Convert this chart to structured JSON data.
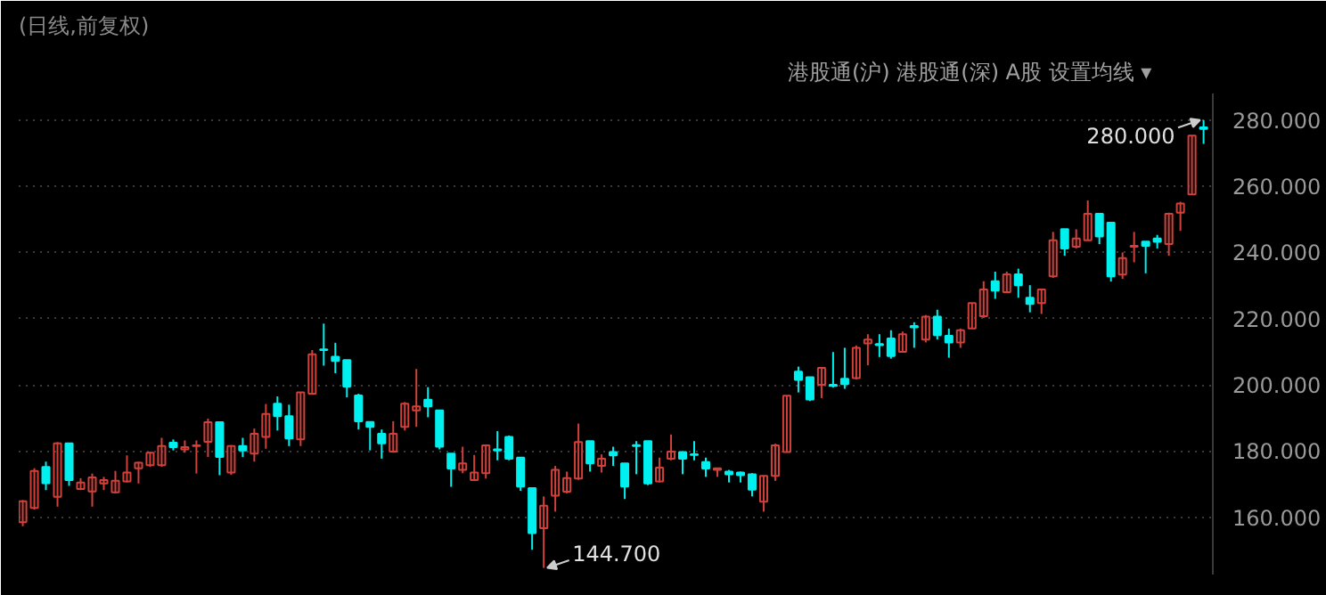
{
  "chart_data": {
    "type": "candlestick",
    "subtitle": "(日线,前复权)",
    "categories": [
      null,
      null,
      null,
      null,
      null,
      null,
      null,
      null,
      null,
      null,
      null,
      null,
      null,
      null,
      null,
      null,
      null,
      null,
      null,
      null,
      null,
      null,
      null,
      null,
      null,
      null,
      null,
      null,
      null,
      null,
      null,
      null,
      null,
      null,
      null,
      null,
      null,
      null,
      null,
      null,
      null,
      null,
      null,
      null,
      null,
      null,
      null,
      null,
      null,
      null,
      null,
      null,
      null,
      null,
      null,
      null,
      null,
      null,
      null,
      null,
      null,
      null,
      null,
      null,
      null,
      null,
      null,
      null,
      null,
      null,
      null,
      null,
      null,
      null,
      null,
      null,
      null,
      null,
      null,
      null,
      null,
      null,
      null,
      null,
      null,
      null,
      null,
      null,
      null,
      null,
      null,
      null,
      null,
      null,
      null,
      null,
      null,
      null,
      null,
      null,
      null,
      null,
      null
    ],
    "ohlc": [
      [
        158.5,
        165.2,
        157.3,
        164.8
      ],
      [
        162.8,
        174.8,
        162.3,
        174.0
      ],
      [
        175.2,
        176.8,
        168.2,
        170.3
      ],
      [
        166.2,
        182.7,
        163.2,
        182.3
      ],
      [
        182.3,
        182.3,
        169.5,
        171.2
      ],
      [
        168.5,
        171.8,
        168.2,
        170.5
      ],
      [
        167.8,
        173.2,
        163.2,
        172.0
      ],
      [
        170.2,
        172.2,
        168.2,
        171.2
      ],
      [
        167.5,
        174.0,
        167.2,
        171.0
      ],
      [
        170.8,
        178.7,
        170.5,
        173.5
      ],
      [
        174.8,
        176.8,
        170.2,
        176.5
      ],
      [
        175.7,
        179.8,
        175.2,
        179.5
      ],
      [
        175.7,
        184.0,
        175.2,
        181.5
      ],
      [
        182.5,
        183.5,
        180.2,
        181.2
      ],
      [
        180.5,
        183.2,
        179.5,
        181.2
      ],
      [
        181.5,
        183.2,
        173.2,
        181.7
      ],
      [
        182.8,
        189.8,
        178.2,
        188.7
      ],
      [
        188.7,
        188.7,
        172.7,
        178.2
      ],
      [
        173.5,
        181.8,
        172.8,
        181.5
      ],
      [
        181.5,
        184.0,
        178.2,
        180.2
      ],
      [
        179.2,
        186.8,
        176.8,
        185.2
      ],
      [
        184.3,
        194.2,
        180.7,
        191.2
      ],
      [
        194.3,
        196.5,
        186.2,
        190.5
      ],
      [
        190.5,
        194.0,
        181.5,
        183.8
      ],
      [
        183.5,
        197.7,
        181.5,
        197.7
      ],
      [
        197.3,
        210.5,
        197.3,
        209.2
      ],
      [
        210.7,
        218.5,
        205.8,
        210.5
      ],
      [
        208.5,
        212.7,
        203.5,
        207.2
      ],
      [
        207.5,
        207.5,
        196.2,
        199.5
      ],
      [
        196.8,
        197.3,
        186.5,
        189.0
      ],
      [
        188.8,
        188.8,
        180.2,
        187.3
      ],
      [
        185.2,
        186.5,
        177.7,
        182.3
      ],
      [
        179.8,
        189.0,
        179.5,
        185.2
      ],
      [
        187.3,
        194.8,
        186.2,
        194.3
      ],
      [
        192.3,
        204.8,
        187.3,
        193.5
      ],
      [
        195.5,
        199.3,
        190.2,
        193.5
      ],
      [
        192.3,
        192.3,
        180.5,
        181.3
      ],
      [
        179.2,
        179.2,
        169.2,
        174.7
      ],
      [
        174.3,
        181.3,
        173.3,
        176.3
      ],
      [
        171.2,
        178.8,
        171.0,
        173.5
      ],
      [
        173.3,
        182.0,
        171.7,
        181.7
      ],
      [
        180.5,
        186.0,
        177.2,
        180.2
      ],
      [
        184.3,
        184.7,
        177.2,
        177.7
      ],
      [
        178.0,
        178.0,
        168.0,
        169.3
      ],
      [
        168.8,
        168.8,
        150.2,
        155.2
      ],
      [
        156.7,
        166.3,
        144.7,
        163.5
      ],
      [
        166.5,
        175.5,
        161.7,
        174.3
      ],
      [
        167.7,
        173.8,
        167.2,
        171.8
      ],
      [
        171.7,
        188.3,
        171.3,
        182.7
      ],
      [
        183.0,
        183.0,
        173.8,
        176.3
      ],
      [
        175.5,
        179.0,
        173.5,
        177.7
      ],
      [
        179.7,
        181.3,
        175.5,
        178.7
      ],
      [
        176.3,
        176.3,
        165.5,
        169.3
      ],
      [
        181.8,
        183.0,
        173.0,
        181.5
      ],
      [
        183.0,
        183.0,
        169.7,
        170.2
      ],
      [
        170.8,
        178.0,
        170.5,
        175.0
      ],
      [
        177.7,
        185.0,
        177.2,
        179.8
      ],
      [
        179.7,
        179.7,
        173.0,
        177.7
      ],
      [
        179.0,
        183.0,
        177.2,
        178.8
      ],
      [
        176.7,
        178.0,
        172.2,
        174.7
      ],
      [
        174.3,
        174.8,
        172.2,
        174.8
      ],
      [
        173.8,
        174.3,
        170.5,
        173.0
      ],
      [
        173.5,
        173.8,
        170.5,
        172.7
      ],
      [
        173.0,
        173.3,
        166.3,
        168.3
      ],
      [
        164.7,
        172.5,
        161.7,
        172.5
      ],
      [
        172.5,
        182.2,
        171.0,
        181.7
      ],
      [
        179.7,
        196.7,
        179.7,
        196.7
      ],
      [
        204.0,
        205.5,
        197.7,
        201.5
      ],
      [
        202.3,
        202.3,
        195.1,
        195.6
      ],
      [
        200.0,
        205.4,
        196.0,
        205.1
      ],
      [
        200.0,
        209.9,
        199.2,
        199.7
      ],
      [
        201.8,
        211.2,
        198.8,
        200.2
      ],
      [
        202.0,
        211.9,
        201.6,
        211.2
      ],
      [
        212.5,
        215.3,
        205.9,
        213.7
      ],
      [
        212.3,
        215.3,
        208.4,
        212.0
      ],
      [
        214.0,
        216.5,
        207.9,
        208.7
      ],
      [
        210.0,
        216.1,
        210.0,
        215.3
      ],
      [
        217.8,
        218.9,
        211.2,
        217.4
      ],
      [
        213.7,
        221.1,
        212.8,
        220.6
      ],
      [
        220.6,
        222.7,
        213.7,
        215.0
      ],
      [
        214.8,
        217.0,
        208.2,
        212.8
      ],
      [
        212.8,
        217.0,
        211.2,
        216.5
      ],
      [
        217.0,
        224.7,
        217.0,
        224.7
      ],
      [
        220.7,
        231.3,
        220.2,
        228.8
      ],
      [
        231.3,
        234.2,
        226.0,
        228.5
      ],
      [
        228.0,
        234.2,
        227.7,
        233.4
      ],
      [
        233.4,
        235.1,
        226.3,
        230.1
      ],
      [
        226.3,
        230.1,
        221.9,
        224.4
      ],
      [
        224.7,
        228.8,
        221.4,
        228.8
      ],
      [
        232.8,
        246.2,
        232.3,
        243.7
      ],
      [
        247.0,
        247.0,
        239.0,
        241.2
      ],
      [
        241.7,
        247.0,
        241.2,
        244.2
      ],
      [
        243.7,
        255.7,
        243.7,
        251.7
      ],
      [
        251.7,
        251.7,
        242.5,
        244.8
      ],
      [
        249.0,
        249.0,
        231.2,
        232.8
      ],
      [
        233.3,
        240.0,
        232.0,
        238.3
      ],
      [
        241.7,
        246.2,
        237.0,
        242.0
      ],
      [
        243.3,
        243.3,
        233.7,
        242.0
      ],
      [
        244.2,
        245.3,
        241.2,
        243.2
      ],
      [
        242.5,
        252.0,
        239.0,
        251.7
      ],
      [
        252.0,
        255.3,
        246.5,
        254.8
      ],
      [
        257.5,
        275.3,
        257.5,
        275.3
      ],
      [
        277.8,
        280.0,
        272.8,
        277.3
      ]
    ],
    "colors": [
      "#d2403a",
      "#d2403a",
      "#00f0f0",
      "#d2403a",
      "#00f0f0",
      "#d2403a",
      "#d2403a",
      "#d2403a",
      "#d2403a",
      "#d2403a",
      "#d2403a",
      "#d2403a",
      "#d2403a",
      "#00f0f0",
      "#d2403a",
      "#d2403a",
      "#d2403a",
      "#00f0f0",
      "#d2403a",
      "#00f0f0",
      "#d2403a",
      "#d2403a",
      "#00f0f0",
      "#00f0f0",
      "#d2403a",
      "#d2403a",
      "#00f0f0",
      "#00f0f0",
      "#00f0f0",
      "#00f0f0",
      "#00f0f0",
      "#00f0f0",
      "#d2403a",
      "#d2403a",
      "#d2403a",
      "#00f0f0",
      "#00f0f0",
      "#00f0f0",
      "#d2403a",
      "#d2403a",
      "#d2403a",
      "#00f0f0",
      "#00f0f0",
      "#00f0f0",
      "#00f0f0",
      "#d2403a",
      "#d2403a",
      "#d2403a",
      "#d2403a",
      "#00f0f0",
      "#d2403a",
      "#00f0f0",
      "#00f0f0",
      "#00f0f0",
      "#00f0f0",
      "#d2403a",
      "#d2403a",
      "#00f0f0",
      "#00f0f0",
      "#00f0f0",
      "#d2403a",
      "#00f0f0",
      "#00f0f0",
      "#00f0f0",
      "#d2403a",
      "#d2403a",
      "#d2403a",
      "#00f0f0",
      "#00f0f0",
      "#d2403a",
      "#00f0f0",
      "#00f0f0",
      "#d2403a",
      "#d2403a",
      "#00f0f0",
      "#00f0f0",
      "#d2403a",
      "#00f0f0",
      "#d2403a",
      "#00f0f0",
      "#00f0f0",
      "#d2403a",
      "#d2403a",
      "#d2403a",
      "#00f0f0",
      "#d2403a",
      "#00f0f0",
      "#00f0f0",
      "#d2403a",
      "#d2403a",
      "#00f0f0",
      "#d2403a",
      "#d2403a",
      "#00f0f0",
      "#00f0f0",
      "#d2403a",
      "#d2403a",
      "#00f0f0",
      "#00f0f0",
      "#d2403a",
      "#d2403a",
      "#d2403a",
      "#00f0f0"
    ],
    "ylim": [
      142.7,
      288
    ],
    "yticks": [
      {
        "value": 160,
        "label": "160.000"
      },
      {
        "value": 180,
        "label": "180.000"
      },
      {
        "value": 200,
        "label": "200.000"
      },
      {
        "value": 220,
        "label": "220.000"
      },
      {
        "value": 240,
        "label": "240.000"
      },
      {
        "value": 260,
        "label": "260.000"
      },
      {
        "value": 280,
        "label": "280.000"
      }
    ],
    "grid": "y",
    "tick_labels": "y",
    "annotations": [
      "144.700",
      "280.000",
      "港股通(沪)",
      "港股通(深)",
      "A股",
      "设置均线 ▾"
    ]
  }
}
